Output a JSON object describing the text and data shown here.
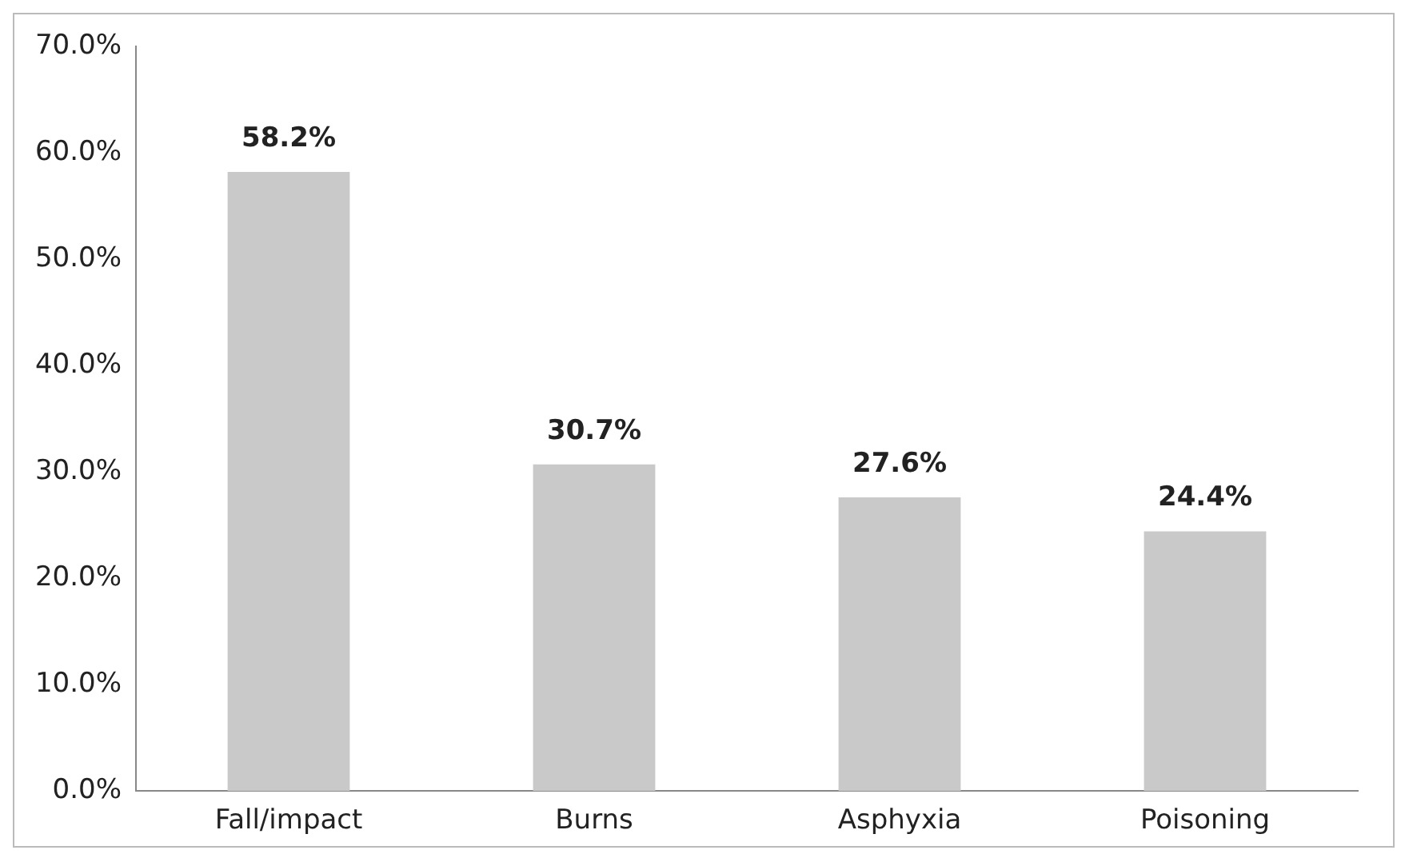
{
  "chart_data": {
    "type": "bar",
    "categories": [
      "Fall/impact",
      "Burns",
      "Asphyxia",
      "Poisoning"
    ],
    "values": [
      58.2,
      30.7,
      27.6,
      24.4
    ],
    "color": "#c9c9c9",
    "value_labels": [
      "58.2%",
      "30.7%",
      "27.6%",
      "24.4%"
    ],
    "ylim": [
      0,
      70
    ],
    "yticks": [
      {
        "value": 0,
        "label": "0.0%"
      },
      {
        "value": 10,
        "label": "10.0%"
      },
      {
        "value": 20,
        "label": "20.0%"
      },
      {
        "value": 30,
        "label": "30.0%"
      },
      {
        "value": 40,
        "label": "40.0%"
      },
      {
        "value": 50,
        "label": "50.0%"
      },
      {
        "value": 60,
        "label": "60.0%"
      },
      {
        "value": 70,
        "label": "70.0%"
      }
    ],
    "grid": false,
    "legend": false
  }
}
